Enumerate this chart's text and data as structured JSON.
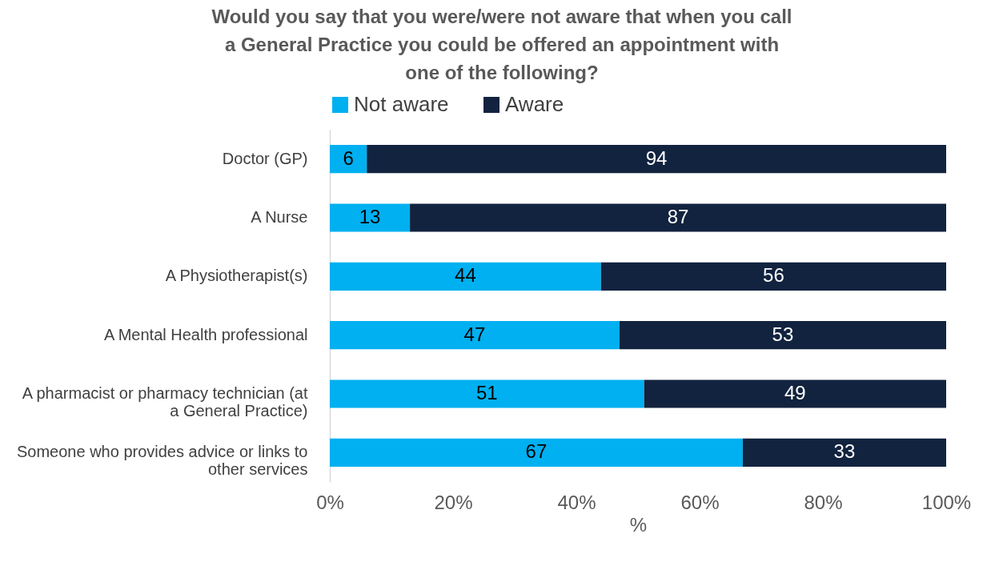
{
  "chart_data": {
    "type": "bar",
    "orientation": "horizontal",
    "stacked": true,
    "title": "Would you say that you were/were not aware that when you call a General Practice you could be offered an appointment with one of the following?",
    "categories": [
      "Doctor (GP)",
      "A Nurse",
      "A Physiotherapist(s)",
      "A Mental Health professional",
      "A pharmacist or pharmacy technician (at a General Practice)",
      "Someone who provides advice or links to other services"
    ],
    "series": [
      {
        "name": "Not aware",
        "color": "#00b0f0",
        "values": [
          6,
          13,
          44,
          47,
          51,
          67
        ]
      },
      {
        "name": "Aware",
        "color": "#12233f",
        "values": [
          94,
          87,
          56,
          53,
          49,
          33
        ]
      }
    ],
    "xlabel": "%",
    "xlim": [
      0,
      100
    ],
    "xticks": [
      {
        "value": 0,
        "label": "0%"
      },
      {
        "value": 20,
        "label": "20%"
      },
      {
        "value": 40,
        "label": "40%"
      },
      {
        "value": 60,
        "label": "60%"
      },
      {
        "value": 80,
        "label": "80%"
      },
      {
        "value": 100,
        "label": "100%"
      }
    ],
    "legend": "top",
    "grid": false,
    "data_labels": true
  }
}
